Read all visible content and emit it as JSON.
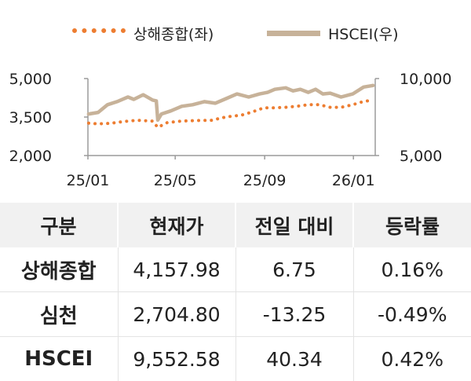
{
  "chart_data": {
    "type": "line",
    "legend_position": "top",
    "grid": false,
    "series": [
      {
        "name": "상해종합(좌)",
        "axis": "left",
        "style": "dotted",
        "color": "#ED7D31",
        "values": [
          [
            "2025-01-02",
            3262
          ],
          [
            "2025-01-15",
            3238
          ],
          [
            "2025-02-01",
            3255
          ],
          [
            "2025-02-20",
            3330
          ],
          [
            "2025-03-10",
            3375
          ],
          [
            "2025-03-31",
            3340
          ],
          [
            "2025-04-07",
            3096
          ],
          [
            "2025-04-20",
            3282
          ],
          [
            "2025-05-10",
            3345
          ],
          [
            "2025-06-01",
            3365
          ],
          [
            "2025-06-20",
            3375
          ],
          [
            "2025-07-10",
            3505
          ],
          [
            "2025-07-31",
            3575
          ],
          [
            "2025-08-15",
            3700
          ],
          [
            "2025-08-31",
            3860
          ],
          [
            "2025-09-15",
            3860
          ],
          [
            "2025-09-30",
            3880
          ],
          [
            "2025-10-15",
            3920
          ],
          [
            "2025-10-31",
            3980
          ],
          [
            "2025-11-15",
            3980
          ],
          [
            "2025-11-30",
            3880
          ],
          [
            "2025-12-15",
            3880
          ],
          [
            "2025-12-31",
            3980
          ],
          [
            "2026-01-15",
            4110
          ],
          [
            "2026-01-28",
            4158
          ]
        ]
      },
      {
        "name": "HSCEI(우)",
        "axis": "right",
        "style": "solid",
        "color": "#C7B299",
        "values": [
          [
            "2025-01-02",
            7700
          ],
          [
            "2025-01-15",
            7800
          ],
          [
            "2025-01-28",
            8300
          ],
          [
            "2025-02-10",
            8500
          ],
          [
            "2025-02-25",
            8800
          ],
          [
            "2025-03-05",
            8650
          ],
          [
            "2025-03-18",
            8950
          ],
          [
            "2025-03-31",
            8600
          ],
          [
            "2025-04-05",
            8550
          ],
          [
            "2025-04-07",
            7300
          ],
          [
            "2025-04-12",
            7700
          ],
          [
            "2025-04-25",
            7900
          ],
          [
            "2025-05-10",
            8200
          ],
          [
            "2025-05-25",
            8300
          ],
          [
            "2025-06-10",
            8500
          ],
          [
            "2025-06-25",
            8400
          ],
          [
            "2025-07-10",
            8700
          ],
          [
            "2025-07-25",
            9000
          ],
          [
            "2025-08-10",
            8800
          ],
          [
            "2025-08-25",
            9000
          ],
          [
            "2025-09-05",
            9100
          ],
          [
            "2025-09-15",
            9300
          ],
          [
            "2025-09-30",
            9400
          ],
          [
            "2025-10-10",
            9200
          ],
          [
            "2025-10-20",
            9300
          ],
          [
            "2025-10-31",
            9100
          ],
          [
            "2025-11-10",
            9300
          ],
          [
            "2025-11-20",
            9000
          ],
          [
            "2025-11-30",
            9050
          ],
          [
            "2025-12-15",
            8800
          ],
          [
            "2025-12-31",
            9000
          ],
          [
            "2026-01-15",
            9450
          ],
          [
            "2026-01-28",
            9553
          ]
        ]
      }
    ],
    "y_left": {
      "min": 2000,
      "max": 5000,
      "ticks": [
        "5,000",
        "3,500",
        "2,000"
      ]
    },
    "y_right": {
      "min": 5000,
      "max": 10000,
      "ticks": [
        "10,000",
        "5,000"
      ]
    },
    "x_range": [
      "2025-01-01",
      "2026-01-31"
    ],
    "x_ticks": [
      {
        "date": "2025-01-01",
        "label": "25/01"
      },
      {
        "date": "2025-05-01",
        "label": "25/05"
      },
      {
        "date": "2025-09-01",
        "label": "25/09"
      },
      {
        "date": "2026-01-01",
        "label": "26/01"
      }
    ]
  },
  "table": {
    "headers": [
      "구분",
      "현재가",
      "전일 대비",
      "등락률"
    ],
    "rows": [
      [
        "상해종합",
        "4,157.98",
        "6.75",
        "0.16%"
      ],
      [
        "심천",
        "2,704.80",
        "-13.25",
        "-0.49%"
      ],
      [
        "HSCEI",
        "9,552.58",
        "40.34",
        "0.42%"
      ]
    ]
  }
}
